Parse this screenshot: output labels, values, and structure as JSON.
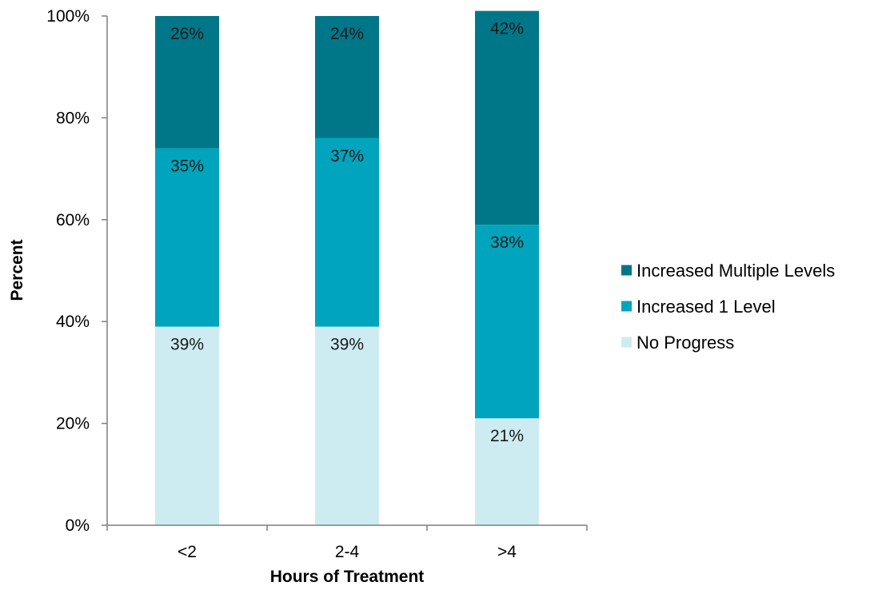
{
  "chart_data": {
    "type": "bar",
    "stacked": true,
    "xlabel": "Hours of Treatment",
    "ylabel": "Percent",
    "categories": [
      "<2",
      "2-4",
      ">4"
    ],
    "ylim": [
      0,
      100
    ],
    "yticks": [
      0,
      20,
      40,
      60,
      80,
      100
    ],
    "ytick_labels": [
      "0%",
      "20%",
      "40%",
      "60%",
      "80%",
      "100%"
    ],
    "value_suffix": "%",
    "grid": false,
    "legend_position": "right",
    "series": [
      {
        "name": "No Progress",
        "values": [
          39,
          39,
          21
        ],
        "color": "#cdecf1"
      },
      {
        "name": "Increased 1 Level",
        "values": [
          35,
          37,
          38
        ],
        "color": "#00a4bd"
      },
      {
        "name": "Increased Multiple Levels",
        "values": [
          26,
          24,
          42
        ],
        "color": "#007789"
      }
    ],
    "legend_order": [
      "Increased Multiple Levels",
      "Increased 1 Level",
      "No Progress"
    ]
  }
}
